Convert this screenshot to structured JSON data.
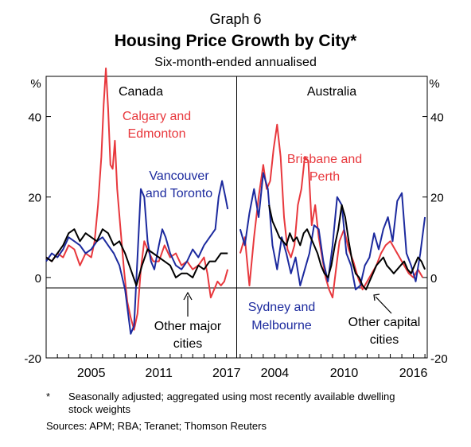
{
  "graph_number": "Graph 6",
  "title": "Housing Price Growth by City*",
  "subtitle": "Six-month-ended annualised",
  "footnote_marker": "*",
  "footnote_text": "Seasonally adjusted; aggregated using most recently available dwelling stock weights",
  "sources": "Sources:   APM; RBA; Teranet; Thomson Reuters",
  "colors": {
    "red": "#E8383D",
    "blue": "#1C2A9E",
    "black": "#000000"
  },
  "chart_data": [
    {
      "type": "line",
      "panel_title": "Canada",
      "y_unit": "%",
      "ylim": [
        -20,
        50
      ],
      "yticks": [
        -20,
        0,
        20,
        40
      ],
      "ytick_labels": [
        "-20",
        "0",
        "20",
        "40"
      ],
      "xlim": [
        2001.0,
        2017.9
      ],
      "xticks": [
        2005,
        2011,
        2017
      ],
      "xtick_labels": [
        "2005",
        "2011",
        "2017"
      ],
      "series": [
        {
          "name": "Calgary and Edmonton",
          "label_lines": [
            "Calgary and",
            "Edmonton"
          ],
          "color": "red",
          "x": [
            2001.0,
            2001.5,
            2002.0,
            2002.5,
            2003.0,
            2003.5,
            2004.0,
            2004.5,
            2005.0,
            2005.3,
            2005.6,
            2005.9,
            2006.1,
            2006.3,
            2006.5,
            2006.7,
            2006.9,
            2007.1,
            2007.3,
            2007.6,
            2007.9,
            2008.2,
            2008.5,
            2008.8,
            2009.1,
            2009.4,
            2009.7,
            2010.0,
            2010.5,
            2011.0,
            2011.5,
            2012.0,
            2012.5,
            2013.0,
            2013.5,
            2014.0,
            2014.5,
            2015.0,
            2015.3,
            2015.6,
            2015.9,
            2016.2,
            2016.5,
            2016.8,
            2017.1
          ],
          "values": [
            5,
            4,
            6,
            5,
            8,
            7,
            3,
            6,
            5,
            9,
            18,
            30,
            43,
            52,
            42,
            28,
            27,
            34,
            22,
            12,
            2,
            -6,
            -10,
            -13,
            -9,
            2,
            9,
            7,
            4,
            4,
            8,
            5,
            6,
            3,
            4,
            2,
            3,
            5,
            1,
            -5,
            -3,
            -1,
            -2,
            -1,
            2
          ]
        },
        {
          "name": "Vancouver and Toronto",
          "label_lines": [
            "Vancouver",
            "and Toronto"
          ],
          "color": "blue",
          "x": [
            2001.0,
            2001.5,
            2002.0,
            2002.5,
            2003.0,
            2003.5,
            2004.0,
            2004.5,
            2005.0,
            2005.5,
            2006.0,
            2006.5,
            2007.0,
            2007.5,
            2008.0,
            2008.5,
            2008.8,
            2009.1,
            2009.4,
            2009.7,
            2010.0,
            2010.3,
            2010.6,
            2011.0,
            2011.3,
            2011.6,
            2012.0,
            2012.5,
            2013.0,
            2013.5,
            2014.0,
            2014.5,
            2015.0,
            2015.5,
            2016.0,
            2016.3,
            2016.6,
            2016.9,
            2017.1
          ],
          "values": [
            4,
            6,
            5,
            7,
            10,
            9,
            8,
            6,
            7,
            9,
            10,
            8,
            6,
            3,
            -3,
            -14,
            -12,
            5,
            22,
            20,
            9,
            4,
            2,
            8,
            12,
            10,
            6,
            3,
            2,
            4,
            7,
            5,
            8,
            10,
            12,
            20,
            24,
            20,
            17
          ]
        },
        {
          "name": "Other major cities",
          "label_lines": [
            "Other major",
            "cities"
          ],
          "color": "black",
          "x": [
            2001.0,
            2001.5,
            2002.0,
            2002.5,
            2003.0,
            2003.5,
            2004.0,
            2004.5,
            2005.0,
            2005.5,
            2006.0,
            2006.5,
            2007.0,
            2007.5,
            2008.0,
            2008.5,
            2009.0,
            2009.5,
            2010.0,
            2010.5,
            2011.0,
            2011.5,
            2012.0,
            2012.5,
            2013.0,
            2013.5,
            2014.0,
            2014.5,
            2015.0,
            2015.5,
            2016.0,
            2016.5,
            2017.1
          ],
          "values": [
            5,
            4,
            6,
            8,
            11,
            12,
            9,
            11,
            10,
            9,
            12,
            11,
            8,
            9,
            6,
            2,
            -2,
            3,
            7,
            6,
            5,
            4,
            3,
            0,
            1,
            1,
            0,
            3,
            2,
            4,
            4,
            6,
            6
          ]
        }
      ]
    },
    {
      "type": "line",
      "panel_title": "Australia",
      "y_unit": "%",
      "ylim": [
        -20,
        50
      ],
      "yticks": [
        -20,
        0,
        20,
        40
      ],
      "ytick_labels": [
        "-20",
        "0",
        "20",
        "40"
      ],
      "xlim": [
        2000.7,
        2017.2
      ],
      "xticks": [
        2004,
        2010,
        2016
      ],
      "xtick_labels": [
        "2004",
        "2010",
        "2016"
      ],
      "series": [
        {
          "name": "Brisbane and Perth",
          "label_lines": [
            "Brisbane and",
            "Perth"
          ],
          "color": "red",
          "x": [
            2001.0,
            2001.4,
            2001.8,
            2002.2,
            2002.6,
            2003.0,
            2003.3,
            2003.6,
            2003.9,
            2004.2,
            2004.5,
            2004.8,
            2005.1,
            2005.4,
            2005.7,
            2006.0,
            2006.3,
            2006.6,
            2006.9,
            2007.2,
            2007.5,
            2007.8,
            2008.1,
            2008.4,
            2008.7,
            2009.0,
            2009.3,
            2009.6,
            2010.0,
            2010.4,
            2010.8,
            2011.2,
            2011.6,
            2012.0,
            2012.4,
            2012.8,
            2013.2,
            2013.6,
            2014.0,
            2014.4,
            2014.8,
            2015.2,
            2015.6,
            2016.0,
            2016.4,
            2016.8
          ],
          "values": [
            6,
            10,
            -2,
            10,
            20,
            28,
            22,
            24,
            32,
            38,
            30,
            15,
            7,
            5,
            8,
            18,
            22,
            30,
            29,
            13,
            18,
            10,
            5,
            0,
            -3,
            -5,
            2,
            9,
            12,
            7,
            4,
            0,
            -3,
            -1,
            1,
            3,
            6,
            8,
            9,
            7,
            5,
            3,
            1,
            0,
            2,
            0
          ]
        },
        {
          "name": "Sydney and Melbourne",
          "label_lines": [
            "Sydney and",
            "Melbourne"
          ],
          "color": "blue",
          "x": [
            2001.0,
            2001.4,
            2001.8,
            2002.2,
            2002.6,
            2003.0,
            2003.4,
            2003.8,
            2004.2,
            2004.6,
            2005.0,
            2005.4,
            2005.8,
            2006.2,
            2006.6,
            2007.0,
            2007.4,
            2007.8,
            2008.2,
            2008.6,
            2009.0,
            2009.4,
            2009.8,
            2010.2,
            2010.6,
            2011.0,
            2011.4,
            2011.8,
            2012.2,
            2012.6,
            2013.0,
            2013.4,
            2013.8,
            2014.2,
            2014.6,
            2015.0,
            2015.4,
            2015.8,
            2016.2,
            2016.6,
            2017.0
          ],
          "values": [
            12,
            8,
            16,
            22,
            15,
            26,
            22,
            8,
            2,
            10,
            6,
            1,
            5,
            -2,
            2,
            6,
            13,
            12,
            4,
            -1,
            8,
            20,
            18,
            6,
            3,
            -3,
            -2,
            3,
            5,
            11,
            7,
            12,
            15,
            9,
            19,
            21,
            6,
            3,
            -1,
            6,
            15
          ]
        },
        {
          "name": "Other capital cities",
          "label_lines": [
            "Other capital",
            "cities"
          ],
          "color": "black",
          "x": [
            2003.5,
            2003.8,
            2004.1,
            2004.4,
            2004.7,
            2005.0,
            2005.3,
            2005.6,
            2005.9,
            2006.2,
            2006.5,
            2006.8,
            2007.1,
            2007.4,
            2007.7,
            2008.0,
            2008.3,
            2008.6,
            2008.9,
            2009.2,
            2009.5,
            2009.8,
            2010.1,
            2010.4,
            2010.7,
            2011.0,
            2011.3,
            2011.6,
            2011.9,
            2012.2,
            2012.5,
            2012.8,
            2013.1,
            2013.4,
            2013.7,
            2014.0,
            2014.3,
            2014.6,
            2014.9,
            2015.2,
            2015.5,
            2015.8,
            2016.1,
            2016.4,
            2016.7,
            2017.0
          ],
          "values": [
            18,
            14,
            12,
            10,
            9,
            8,
            11,
            9,
            10,
            8,
            11,
            12,
            10,
            8,
            6,
            3,
            1,
            0,
            3,
            8,
            12,
            18,
            15,
            9,
            4,
            1,
            0,
            -2,
            -3,
            -1,
            1,
            3,
            4,
            5,
            3,
            2,
            1,
            2,
            3,
            4,
            2,
            1,
            3,
            5,
            4,
            2
          ]
        }
      ]
    }
  ]
}
